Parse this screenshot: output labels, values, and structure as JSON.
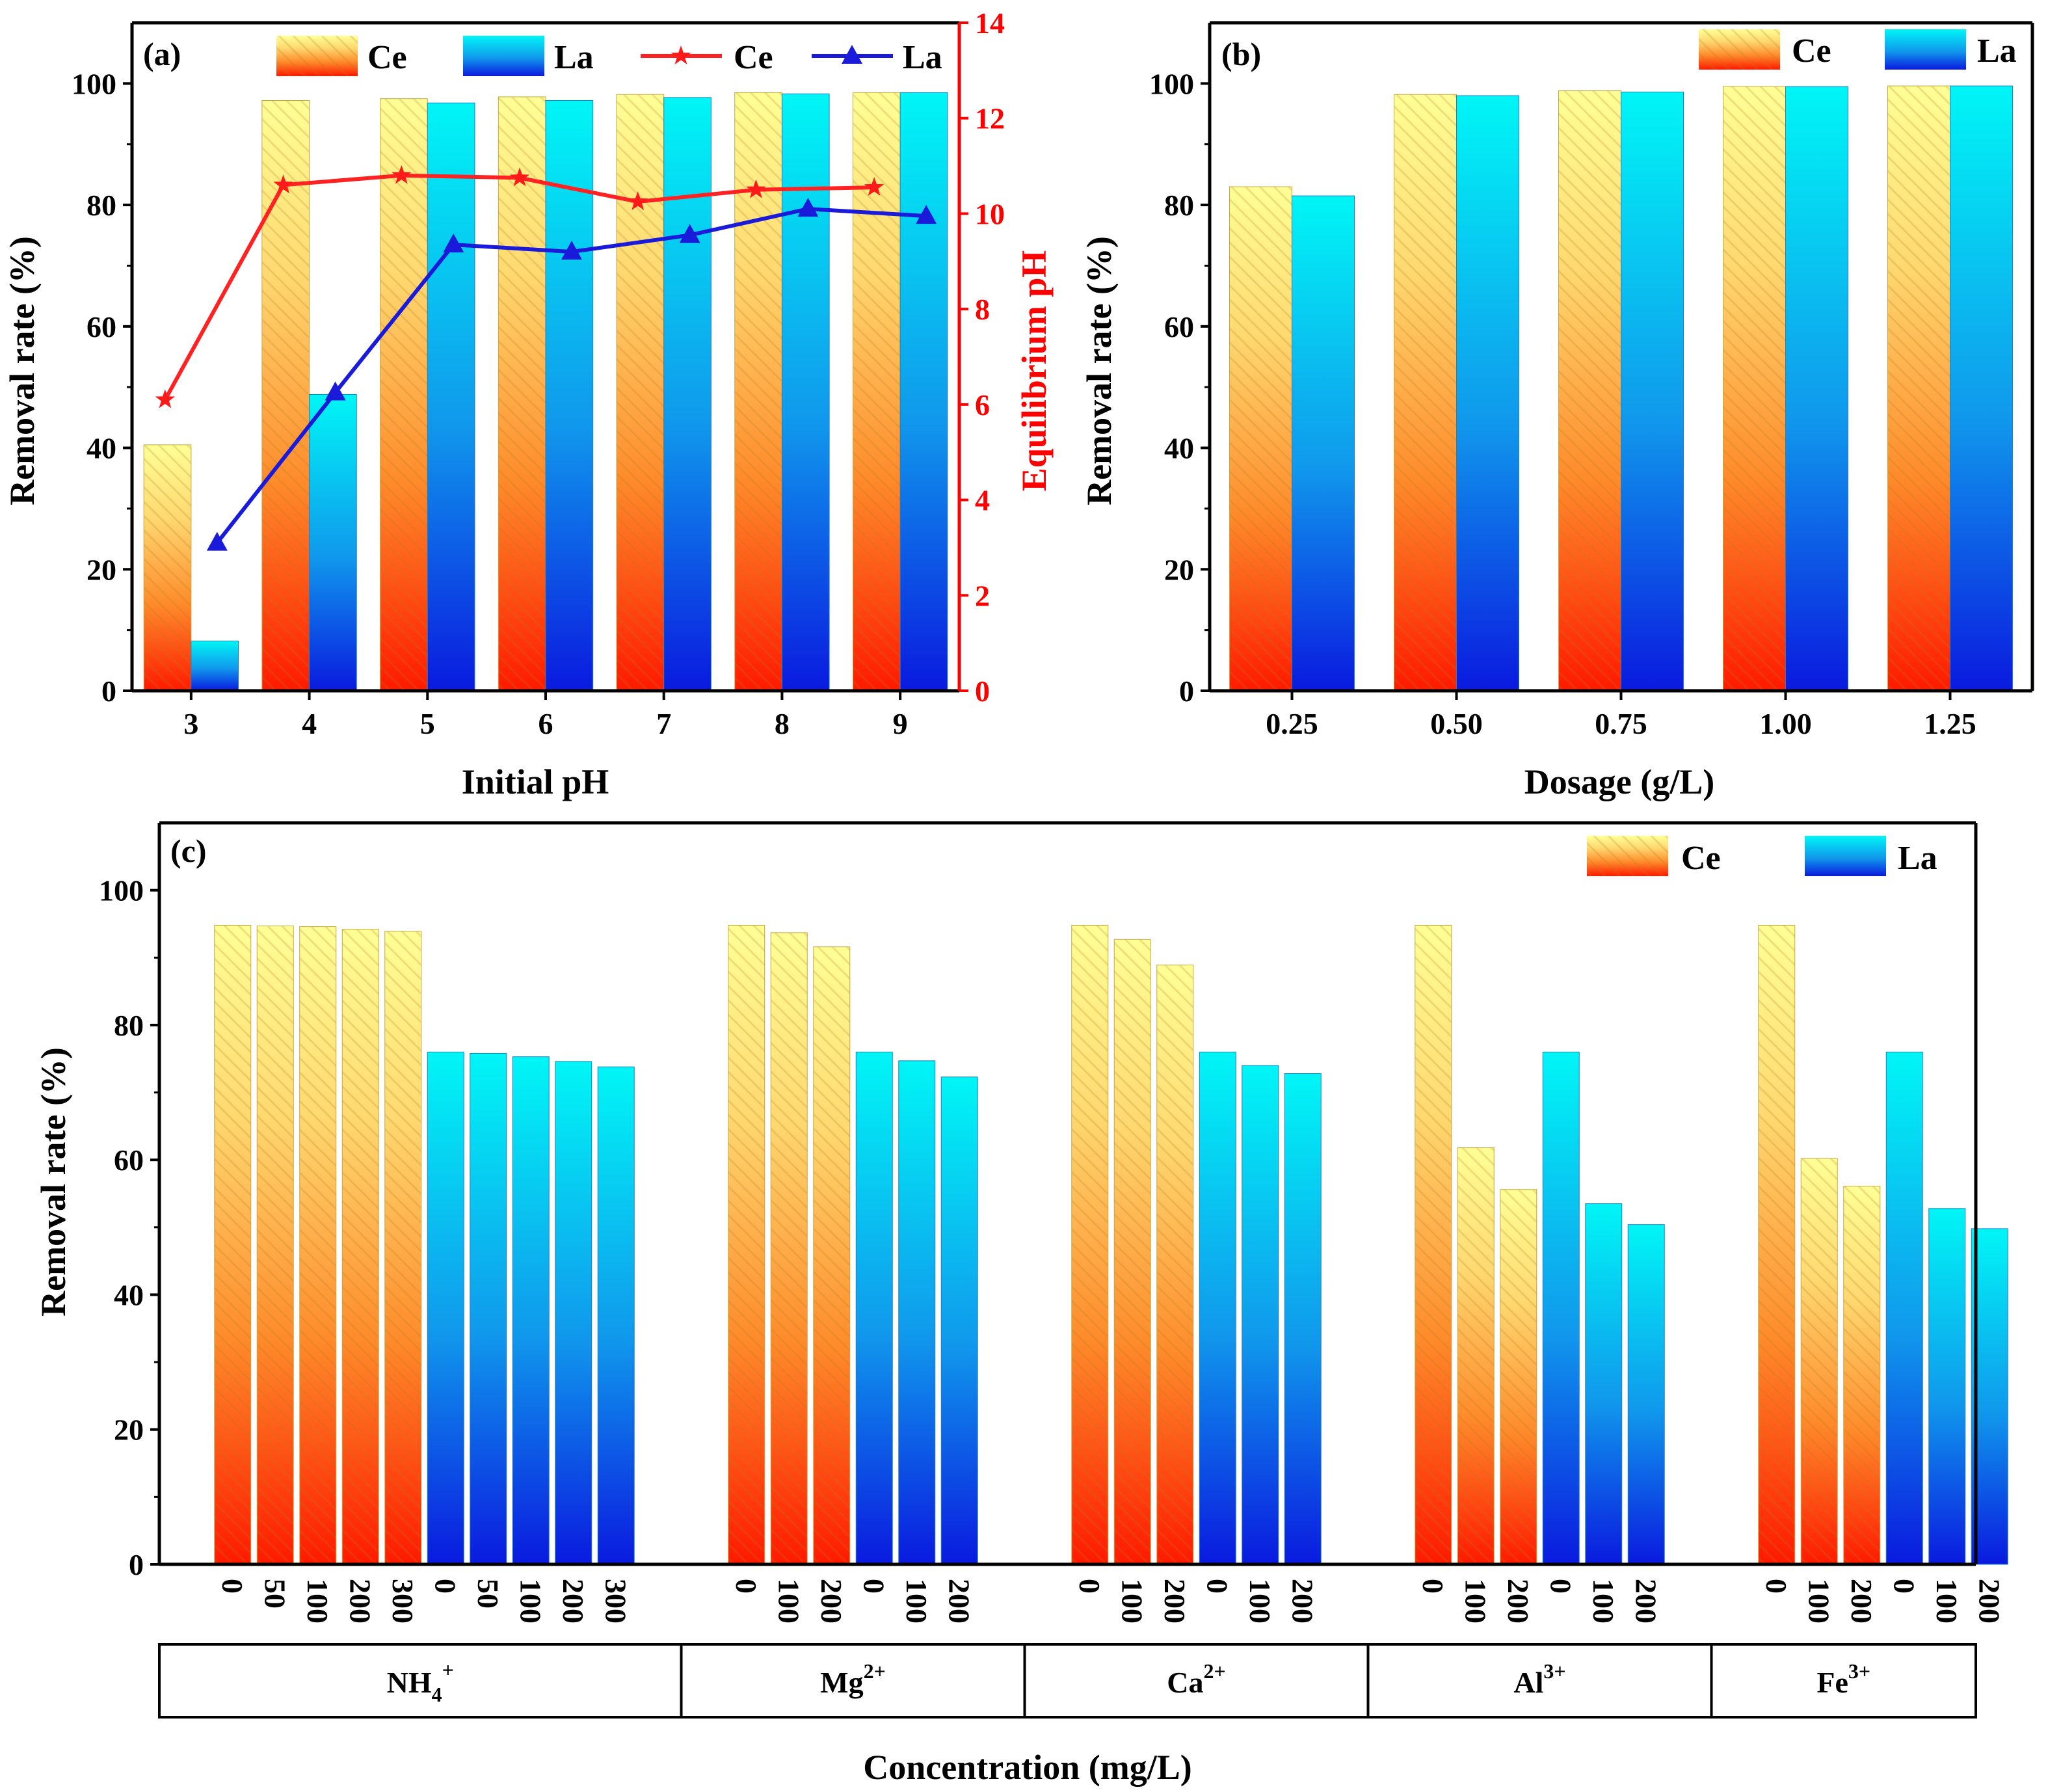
{
  "chart_data": [
    {
      "id": "a",
      "panel_label": "(a)",
      "type": "bar+line",
      "xlabel": "Initial pH",
      "ylabel": "Removal rate (%)",
      "y2label": "Equilibrium pH",
      "ylim": [
        0,
        110
      ],
      "yticks": [
        0,
        20,
        40,
        60,
        80,
        100
      ],
      "y2lim": [
        0,
        14
      ],
      "y2ticks": [
        0,
        2,
        4,
        6,
        8,
        10,
        12,
        14
      ],
      "categories": [
        "3",
        "4",
        "5",
        "6",
        "7",
        "8",
        "9"
      ],
      "series": [
        {
          "name": "Ce",
          "kind": "bar",
          "values": [
            40.5,
            97.2,
            97.5,
            97.8,
            98.2,
            98.5,
            98.5
          ]
        },
        {
          "name": "La",
          "kind": "bar",
          "values": [
            8.2,
            48.8,
            96.8,
            97.2,
            97.7,
            98.3,
            98.5
          ]
        },
        {
          "name": "Ce",
          "kind": "line",
          "axis": "y2",
          "color": "#ff2222",
          "values": [
            6.1,
            10.6,
            10.8,
            10.75,
            10.25,
            10.5,
            10.55
          ]
        },
        {
          "name": "La",
          "kind": "line",
          "axis": "y2",
          "color": "#1a1adb",
          "values": [
            3.1,
            6.25,
            9.35,
            9.2,
            9.55,
            10.1,
            9.95
          ]
        }
      ],
      "legend": [
        "Ce",
        "La",
        "Ce",
        "La"
      ]
    },
    {
      "id": "b",
      "panel_label": "(b)",
      "type": "bar",
      "xlabel": "Dosage (g/L)",
      "ylabel": "Removal rate (%)",
      "ylim": [
        0,
        110
      ],
      "yticks": [
        0,
        20,
        40,
        60,
        80,
        100
      ],
      "categories": [
        "0.25",
        "0.50",
        "0.75",
        "1.00",
        "1.25"
      ],
      "series": [
        {
          "name": "Ce",
          "values": [
            83.0,
            98.2,
            98.8,
            99.5,
            99.6
          ]
        },
        {
          "name": "La",
          "values": [
            81.5,
            98.0,
            98.6,
            99.5,
            99.6
          ]
        }
      ],
      "legend": [
        "Ce",
        "La"
      ]
    },
    {
      "id": "c",
      "panel_label": "(c)",
      "type": "bar",
      "xlabel": "Concentration (mg/L)",
      "ylabel": "Removal rate (%)",
      "ylim": [
        0,
        110
      ],
      "yticks": [
        0,
        20,
        40,
        60,
        80,
        100
      ],
      "legend": [
        "Ce",
        "La"
      ],
      "groups": [
        {
          "ion": "NH",
          "sub": "4",
          "sup": "+",
          "bars": [
            {
              "series": "Ce",
              "conc": "0",
              "value": 94.8
            },
            {
              "series": "Ce",
              "conc": "50",
              "value": 94.7
            },
            {
              "series": "Ce",
              "conc": "100",
              "value": 94.6
            },
            {
              "series": "Ce",
              "conc": "200",
              "value": 94.2
            },
            {
              "series": "Ce",
              "conc": "300",
              "value": 93.9
            },
            {
              "series": "La",
              "conc": "0",
              "value": 76.0
            },
            {
              "series": "La",
              "conc": "50",
              "value": 75.8
            },
            {
              "series": "La",
              "conc": "100",
              "value": 75.3
            },
            {
              "series": "La",
              "conc": "200",
              "value": 74.6
            },
            {
              "series": "La",
              "conc": "300",
              "value": 73.8
            }
          ]
        },
        {
          "ion": "Mg",
          "sub": "",
          "sup": "2+",
          "bars": [
            {
              "series": "Ce",
              "conc": "0",
              "value": 94.8
            },
            {
              "series": "Ce",
              "conc": "100",
              "value": 93.7
            },
            {
              "series": "Ce",
              "conc": "200",
              "value": 91.6
            },
            {
              "series": "La",
              "conc": "0",
              "value": 76.0
            },
            {
              "series": "La",
              "conc": "100",
              "value": 74.7
            },
            {
              "series": "La",
              "conc": "200",
              "value": 72.3
            }
          ]
        },
        {
          "ion": "Ca",
          "sub": "",
          "sup": "2+",
          "bars": [
            {
              "series": "Ce",
              "conc": "0",
              "value": 94.8
            },
            {
              "series": "Ce",
              "conc": "100",
              "value": 92.7
            },
            {
              "series": "Ce",
              "conc": "200",
              "value": 88.9
            },
            {
              "series": "La",
              "conc": "0",
              "value": 76.0
            },
            {
              "series": "La",
              "conc": "100",
              "value": 74.0
            },
            {
              "series": "La",
              "conc": "200",
              "value": 72.8
            }
          ]
        },
        {
          "ion": "Al",
          "sub": "",
          "sup": "3+",
          "bars": [
            {
              "series": "Ce",
              "conc": "0",
              "value": 94.8
            },
            {
              "series": "Ce",
              "conc": "100",
              "value": 61.8
            },
            {
              "series": "Ce",
              "conc": "200",
              "value": 55.6
            },
            {
              "series": "La",
              "conc": "0",
              "value": 76.0
            },
            {
              "series": "La",
              "conc": "100",
              "value": 53.5
            },
            {
              "series": "La",
              "conc": "200",
              "value": 50.4
            }
          ]
        },
        {
          "ion": "Fe",
          "sub": "",
          "sup": "3+",
          "bars": [
            {
              "series": "Ce",
              "conc": "0",
              "value": 94.8
            },
            {
              "series": "Ce",
              "conc": "100",
              "value": 60.2
            },
            {
              "series": "Ce",
              "conc": "200",
              "value": 56.1
            },
            {
              "series": "La",
              "conc": "0",
              "value": 76.0
            },
            {
              "series": "La",
              "conc": "100",
              "value": 52.8
            },
            {
              "series": "La",
              "conc": "200",
              "value": 49.8
            }
          ]
        }
      ]
    }
  ]
}
